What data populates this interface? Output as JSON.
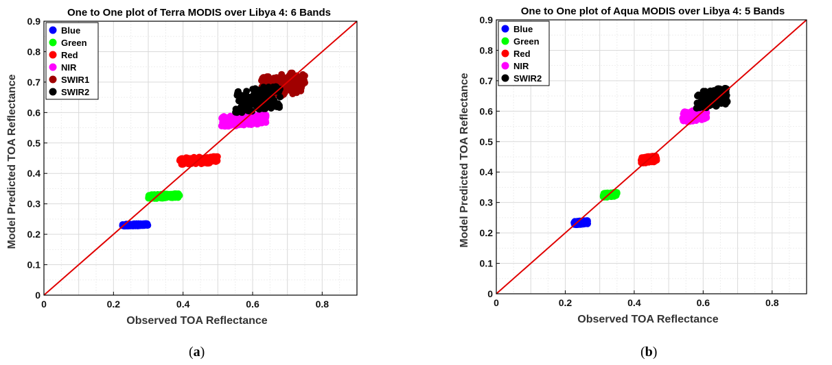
{
  "chart_data": [
    {
      "type": "scatter",
      "panel_label": "a",
      "title": "One to One plot of Terra MODIS over Libya 4: 6 Bands",
      "xlabel": "Observed TOA Reflectance",
      "ylabel": "Model Predicted TOA Reflectance",
      "xlim": [
        0,
        0.9
      ],
      "ylim": [
        0,
        0.9
      ],
      "xticks": [
        "0",
        "0.2",
        "0.4",
        "0.6",
        "0.8"
      ],
      "yticks": [
        "0",
        "0.1",
        "0.2",
        "0.3",
        "0.4",
        "0.5",
        "0.6",
        "0.7",
        "0.8",
        "0.9"
      ],
      "grid": true,
      "legend_position": "top-left",
      "reference_line": {
        "type": "one-to-one",
        "color": "#e00000"
      },
      "series": [
        {
          "name": "Blue",
          "color": "#0000ff",
          "x_range": [
            0.225,
            0.3
          ],
          "y_range": [
            0.227,
            0.235
          ]
        },
        {
          "name": "Green",
          "color": "#00ff00",
          "x_range": [
            0.3,
            0.39
          ],
          "y_range": [
            0.318,
            0.333
          ]
        },
        {
          "name": "Red",
          "color": "#ff0000",
          "x_range": [
            0.39,
            0.5
          ],
          "y_range": [
            0.43,
            0.455
          ]
        },
        {
          "name": "NIR",
          "color": "#ff00ff",
          "x_range": [
            0.51,
            0.64
          ],
          "y_range": [
            0.555,
            0.595
          ]
        },
        {
          "name": "SWIR1",
          "color": "#a00000",
          "x_range": [
            0.62,
            0.75
          ],
          "y_range": [
            0.65,
            0.73
          ]
        },
        {
          "name": "SWIR2",
          "color": "#000000",
          "x_range": [
            0.55,
            0.68
          ],
          "y_range": [
            0.6,
            0.685
          ]
        }
      ]
    },
    {
      "type": "scatter",
      "panel_label": "b",
      "title": "One to One plot of Aqua MODIS over Libya 4: 5 Bands",
      "xlabel": "Observed TOA Reflectance",
      "ylabel": "Model Predicted TOA Reflectance",
      "xlim": [
        0,
        0.9
      ],
      "ylim": [
        0,
        0.9
      ],
      "xticks": [
        "0",
        "0.2",
        "0.4",
        "0.6",
        "0.8"
      ],
      "yticks": [
        "0",
        "0.1",
        "0.2",
        "0.3",
        "0.4",
        "0.5",
        "0.6",
        "0.7",
        "0.8",
        "0.9"
      ],
      "grid": true,
      "legend_position": "top-left",
      "reference_line": {
        "type": "one-to-one",
        "color": "#e00000"
      },
      "series": [
        {
          "name": "Blue",
          "color": "#0000ff",
          "x_range": [
            0.225,
            0.265
          ],
          "y_range": [
            0.227,
            0.24
          ]
        },
        {
          "name": "Green",
          "color": "#00ff00",
          "x_range": [
            0.31,
            0.35
          ],
          "y_range": [
            0.318,
            0.333
          ]
        },
        {
          "name": "Red",
          "color": "#ff0000",
          "x_range": [
            0.42,
            0.465
          ],
          "y_range": [
            0.43,
            0.452
          ]
        },
        {
          "name": "NIR",
          "color": "#ff00ff",
          "x_range": [
            0.54,
            0.61
          ],
          "y_range": [
            0.565,
            0.605
          ]
        },
        {
          "name": "SWIR2",
          "color": "#000000",
          "x_range": [
            0.58,
            0.67
          ],
          "y_range": [
            0.61,
            0.675
          ]
        }
      ]
    }
  ]
}
